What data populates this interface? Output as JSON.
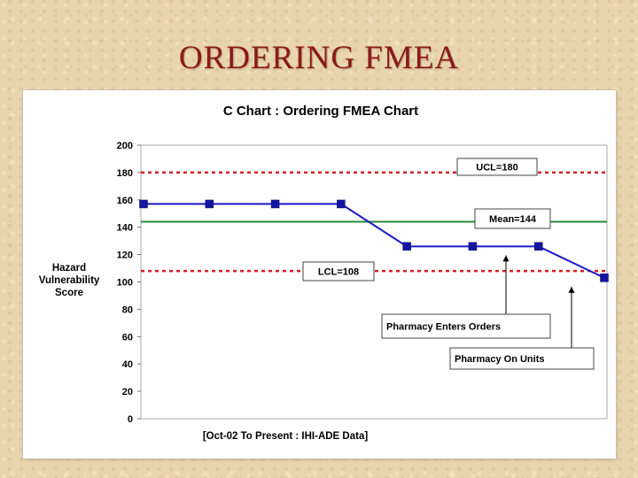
{
  "slide": {
    "title": "ORDERING FMEA"
  },
  "chart_data": {
    "type": "line",
    "title": "C Chart : Ordering FMEA Chart",
    "xlabel": "[Oct-02 To Present : IHI-ADE Data]",
    "ylabel_lines": [
      "Hazard",
      "Vulnerability",
      "Score"
    ],
    "ylim": [
      0,
      200
    ],
    "yticks": [
      0,
      20,
      40,
      60,
      80,
      100,
      120,
      140,
      160,
      180,
      200
    ],
    "series": [
      {
        "values": [
          157,
          157,
          157,
          157,
          126,
          126,
          126,
          103
        ],
        "color": "#1a1ac8",
        "marker": "square"
      }
    ],
    "reference_lines": [
      {
        "label": "UCL=180",
        "value": 180,
        "color": "#d42020",
        "style": "dashed"
      },
      {
        "label": "Mean=144",
        "value": 144,
        "color": "#2a8a3a",
        "style": "solid"
      },
      {
        "label": "LCL=108",
        "value": 108,
        "color": "#d42020",
        "style": "dashed"
      }
    ],
    "annotations": [
      {
        "text": "Pharmacy Enters Orders",
        "points_to_index": 5
      },
      {
        "text": "Pharmacy On Units",
        "points_to_index": 7
      }
    ],
    "grid": false
  }
}
